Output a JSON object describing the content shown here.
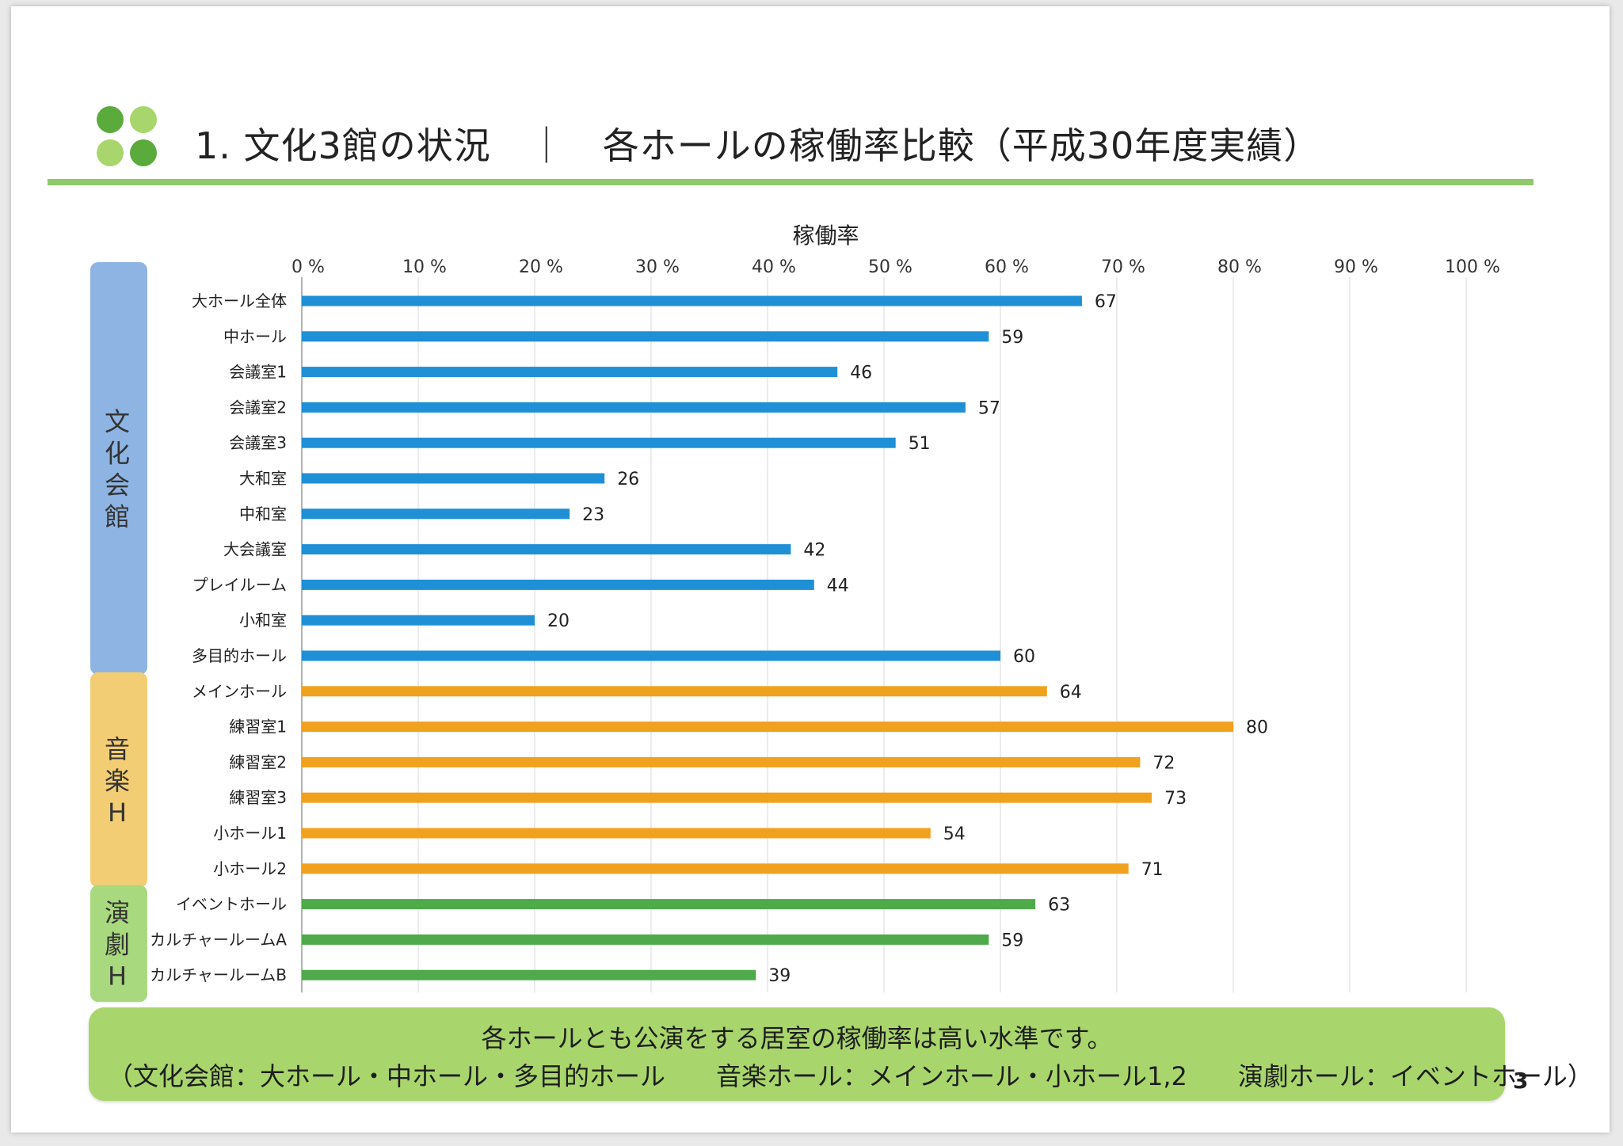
{
  "header": {
    "title": "1. 文化3館の状況　｜　各ホールの稼働率比較（平成30年度実績）"
  },
  "chart_data": {
    "type": "bar",
    "orientation": "horizontal",
    "axis_title": "稼働率",
    "xlim": [
      0,
      100
    ],
    "x_ticks": [
      "0 %",
      "10 %",
      "20 %",
      "30 %",
      "40 %",
      "50 %",
      "60 %",
      "70 %",
      "80 %",
      "90 %",
      "100 %"
    ],
    "grid": true,
    "groups": [
      {
        "label": "文化会館",
        "color": "#8db4e2",
        "bar_color": "#1f8fd6",
        "start": 0,
        "end": 11
      },
      {
        "label": "音楽H",
        "color": "#f2cd73",
        "bar_color": "#f0a21e",
        "start": 11,
        "end": 17
      },
      {
        "label": "演劇H",
        "color": "#a8d97e",
        "bar_color": "#4eaa4a",
        "start": 17,
        "end": 20
      }
    ],
    "categories": [
      "大ホール全体",
      "中ホール",
      "会議室1",
      "会議室2",
      "会議室3",
      "大和室",
      "中和室",
      "大会議室",
      "プレイルーム",
      "小和室",
      "多目的ホール",
      "メインホール",
      "練習室1",
      "練習室2",
      "練習室3",
      "小ホール1",
      "小ホール2",
      "イベントホール",
      "カルチャールームA",
      "カルチャールームB"
    ],
    "values": [
      67,
      59,
      46,
      57,
      51,
      26,
      23,
      42,
      44,
      20,
      60,
      64,
      80,
      72,
      73,
      54,
      71,
      63,
      59,
      39
    ]
  },
  "summary": {
    "line1": "各ホールとも公演をする居室の稼働率は高い水準です。",
    "line2": "（文化会館：大ホール・中ホール・多目的ホール　　音楽ホール：メインホール・小ホール1,2　　演劇ホール：イベントホール）"
  },
  "page_number": "3"
}
